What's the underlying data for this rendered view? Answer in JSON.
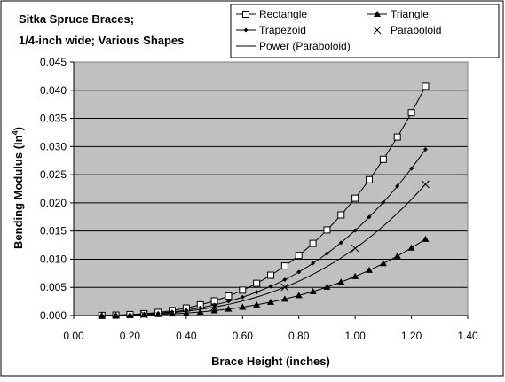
{
  "chart_data": {
    "type": "scatter",
    "title_lines": [
      "Sitka Spruce Braces;",
      "1/4-inch wide; Various Shapes"
    ],
    "xlabel": "Brace Height (inches)",
    "ylabel_main": "Bending Modulus (In",
    "ylabel_sup": "4",
    "ylabel_close": ")",
    "xlim": [
      0,
      1.4
    ],
    "ylim": [
      0,
      0.045
    ],
    "x_ticks": [
      "0.00",
      "0.20",
      "0.40",
      "0.60",
      "0.80",
      "1.00",
      "1.20",
      "1.40"
    ],
    "y_ticks": [
      "0.000",
      "0.005",
      "0.010",
      "0.015",
      "0.020",
      "0.025",
      "0.030",
      "0.035",
      "0.040",
      "0.045"
    ],
    "grid": "horizontal",
    "plot_background": "#c0c0c0",
    "legend_position": "top-right",
    "series": [
      {
        "name": "Rectangle",
        "marker": "square-open",
        "color": "#000000",
        "x": [
          0.1,
          0.15,
          0.2,
          0.25,
          0.3,
          0.35,
          0.4,
          0.45,
          0.5,
          0.55,
          0.6,
          0.65,
          0.7,
          0.75,
          0.8,
          0.85,
          0.9,
          0.95,
          1.0,
          1.05,
          1.1,
          1.15,
          1.2,
          1.25
        ],
        "y": [
          2e-05,
          7e-05,
          0.00017,
          0.00033,
          0.00056,
          0.00089,
          0.00133,
          0.0019,
          0.0026,
          0.00346,
          0.0045,
          0.00572,
          0.00715,
          0.00879,
          0.01067,
          0.0128,
          0.01519,
          0.01786,
          0.02083,
          0.02411,
          0.02773,
          0.03169,
          0.036,
          0.04069
        ]
      },
      {
        "name": "Triangle",
        "marker": "triangle-filled",
        "color": "#000000",
        "x": [
          0.1,
          0.15,
          0.2,
          0.25,
          0.3,
          0.35,
          0.4,
          0.45,
          0.5,
          0.55,
          0.6,
          0.65,
          0.7,
          0.75,
          0.8,
          0.85,
          0.9,
          0.95,
          1.0,
          1.05,
          1.1,
          1.15,
          1.2,
          1.25
        ],
        "y": [
          1e-05,
          2e-05,
          6e-05,
          0.00011,
          0.00019,
          0.0003,
          0.00044,
          0.00063,
          0.00087,
          0.00116,
          0.0015,
          0.00191,
          0.00238,
          0.00293,
          0.00356,
          0.00427,
          0.00506,
          0.00595,
          0.00694,
          0.00804,
          0.00924,
          0.01056,
          0.012,
          0.01356
        ]
      },
      {
        "name": "Trapezoid",
        "marker": "diamond-small",
        "color": "#000000",
        "x": [
          0.1,
          0.15,
          0.2,
          0.25,
          0.3,
          0.35,
          0.4,
          0.45,
          0.5,
          0.55,
          0.6,
          0.65,
          0.7,
          0.75,
          0.8,
          0.85,
          0.9,
          0.95,
          1.0,
          1.05,
          1.1,
          1.15,
          1.2,
          1.25
        ],
        "y": [
          2e-05,
          5e-05,
          0.00012,
          0.00024,
          0.00041,
          0.00065,
          0.00097,
          0.00138,
          0.00189,
          0.00251,
          0.00326,
          0.00415,
          0.00518,
          0.00637,
          0.00773,
          0.00928,
          0.01101,
          0.01295,
          0.0151,
          0.01748,
          0.0201,
          0.02297,
          0.0261,
          0.0295
        ]
      },
      {
        "name": "Paraboloid",
        "marker": "x",
        "color": "#000000",
        "x": [
          0.25,
          0.5,
          0.75,
          1.0,
          1.25
        ],
        "y": [
          0.00019,
          0.00149,
          0.00503,
          0.01193,
          0.0233
        ]
      }
    ],
    "trendline": {
      "name": "Power (Paraboloid)",
      "type": "power",
      "coefficient": 0.01193,
      "exponent": 3,
      "x_range": [
        0.1,
        1.25
      ],
      "color": "#000000"
    }
  }
}
